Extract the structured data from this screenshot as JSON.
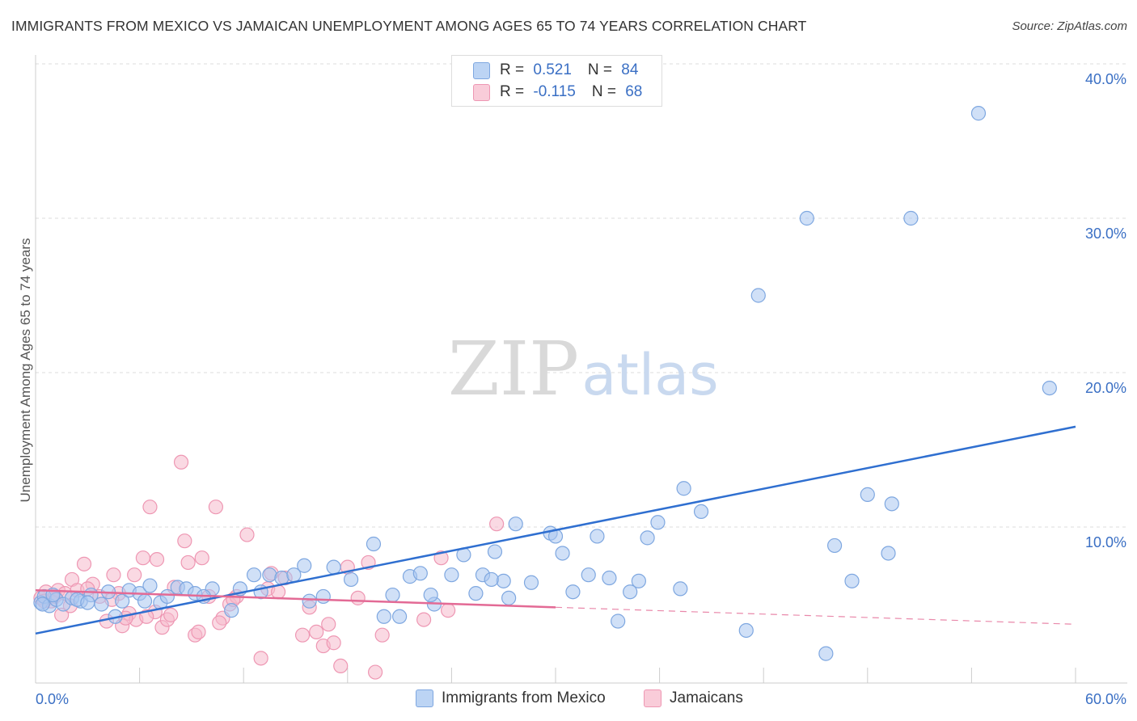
{
  "title": "IMMIGRANTS FROM MEXICO VS JAMAICAN UNEMPLOYMENT AMONG AGES 65 TO 74 YEARS CORRELATION CHART",
  "source": "Source: ZipAtlas.com",
  "watermark": {
    "zip": "ZIP",
    "atlas": "atlas"
  },
  "legend": {
    "rows": [
      {
        "r_label": "R = ",
        "r_value": "0.521",
        "n_label": "N = ",
        "n_value": "84"
      },
      {
        "r_label": "R = ",
        "r_value": "-0.115",
        "n_label": "N = ",
        "n_value": "68"
      }
    ]
  },
  "colors": {
    "blue_fill": "#a9c7f0",
    "blue_stroke": "#7ea7e0",
    "blue_line": "#2f6fd0",
    "pink_fill": "#f6b9cc",
    "pink_stroke": "#ee97b3",
    "pink_line": "#e36a95",
    "tick_text": "#3a6fc4",
    "grid": "#dddddd"
  },
  "chart_data": {
    "type": "scatter",
    "title": "IMMIGRANTS FROM MEXICO VS JAMAICAN UNEMPLOYMENT AMONG AGES 65 TO 74 YEARS CORRELATION CHART",
    "xlabel": "",
    "ylabel": "Unemployment Among Ages 65 to 74 years",
    "xlim": [
      0,
      60
    ],
    "ylim": [
      0,
      40
    ],
    "x_tick_labels": [
      "0.0%",
      "60.0%"
    ],
    "y_ticks": [
      10,
      20,
      30,
      40
    ],
    "y_tick_labels": [
      "10.0%",
      "20.0%",
      "30.0%",
      "40.0%"
    ],
    "grid": "horizontal dashed",
    "legend_position": "top-center",
    "series": [
      {
        "name": "Immigrants from Mexico",
        "color": "#a9c7f0",
        "trend": {
          "x": [
            0,
            60
          ],
          "y": [
            3.1,
            16.5
          ],
          "dashed_from": null
        },
        "points": [
          [
            0.3,
            5.1
          ],
          [
            0.5,
            5.5
          ],
          [
            0.8,
            4.9
          ],
          [
            1.2,
            5.3
          ],
          [
            1.6,
            5.0
          ],
          [
            2.1,
            5.4
          ],
          [
            2.6,
            5.2
          ],
          [
            3.2,
            5.6
          ],
          [
            3.8,
            5.0
          ],
          [
            4.2,
            5.8
          ],
          [
            5.0,
            5.2
          ],
          [
            5.4,
            5.9
          ],
          [
            6.0,
            5.7
          ],
          [
            6.6,
            6.2
          ],
          [
            7.2,
            5.1
          ],
          [
            7.6,
            5.5
          ],
          [
            8.2,
            6.1
          ],
          [
            8.7,
            6.0
          ],
          [
            9.2,
            5.7
          ],
          [
            10.2,
            6.0
          ],
          [
            11.8,
            6.0
          ],
          [
            12.6,
            6.9
          ],
          [
            13.5,
            6.9
          ],
          [
            14.2,
            6.7
          ],
          [
            14.9,
            6.9
          ],
          [
            15.5,
            7.5
          ],
          [
            16.6,
            5.5
          ],
          [
            17.2,
            7.4
          ],
          [
            19.5,
            8.9
          ],
          [
            20.1,
            4.2
          ],
          [
            20.6,
            5.6
          ],
          [
            21.6,
            6.8
          ],
          [
            22.2,
            7.0
          ],
          [
            23.0,
            5.0
          ],
          [
            24.0,
            6.9
          ],
          [
            24.7,
            8.2
          ],
          [
            25.8,
            6.9
          ],
          [
            26.5,
            8.4
          ],
          [
            27.0,
            6.5
          ],
          [
            27.3,
            5.4
          ],
          [
            27.7,
            10.2
          ],
          [
            28.6,
            6.4
          ],
          [
            29.7,
            9.6
          ],
          [
            30.0,
            9.4
          ],
          [
            30.4,
            8.3
          ],
          [
            31.0,
            5.8
          ],
          [
            31.9,
            6.9
          ],
          [
            32.4,
            9.4
          ],
          [
            33.1,
            6.7
          ],
          [
            33.6,
            3.9
          ],
          [
            34.3,
            5.8
          ],
          [
            34.8,
            6.5
          ],
          [
            35.3,
            9.3
          ],
          [
            35.9,
            10.3
          ],
          [
            37.2,
            6.0
          ],
          [
            37.4,
            12.5
          ],
          [
            38.4,
            11.0
          ],
          [
            41.0,
            3.3
          ],
          [
            41.7,
            25.0
          ],
          [
            44.5,
            30.0
          ],
          [
            45.6,
            1.8
          ],
          [
            46.1,
            8.8
          ],
          [
            47.1,
            6.5
          ],
          [
            48.0,
            12.1
          ],
          [
            49.2,
            8.3
          ],
          [
            49.4,
            11.5
          ],
          [
            50.5,
            30.0
          ],
          [
            54.4,
            36.8
          ],
          [
            58.5,
            19.0
          ],
          [
            0.4,
            5.0
          ],
          [
            1.0,
            5.6
          ],
          [
            2.4,
            5.3
          ],
          [
            3.0,
            5.1
          ],
          [
            4.6,
            4.2
          ],
          [
            6.3,
            5.2
          ],
          [
            9.7,
            5.5
          ],
          [
            11.3,
            4.6
          ],
          [
            13.0,
            5.8
          ],
          [
            15.8,
            5.2
          ],
          [
            18.2,
            6.6
          ],
          [
            21.0,
            4.2
          ],
          [
            22.8,
            5.6
          ],
          [
            25.4,
            5.7
          ],
          [
            26.3,
            6.6
          ]
        ]
      },
      {
        "name": "Jamaicans",
        "color": "#f6b9cc",
        "trend": {
          "x": [
            0,
            60
          ],
          "y": [
            5.9,
            3.7
          ],
          "dashed_from": 30
        },
        "points": [
          [
            0.3,
            5.4
          ],
          [
            0.6,
            5.8
          ],
          [
            0.9,
            5.2
          ],
          [
            1.3,
            5.9
          ],
          [
            1.7,
            5.7
          ],
          [
            2.1,
            6.6
          ],
          [
            2.4,
            5.9
          ],
          [
            2.8,
            7.6
          ],
          [
            3.3,
            6.3
          ],
          [
            3.7,
            5.5
          ],
          [
            4.1,
            3.9
          ],
          [
            4.5,
            6.9
          ],
          [
            5.0,
            3.6
          ],
          [
            5.4,
            4.4
          ],
          [
            5.8,
            4.0
          ],
          [
            6.2,
            8.0
          ],
          [
            6.6,
            11.3
          ],
          [
            6.9,
            4.5
          ],
          [
            7.3,
            3.5
          ],
          [
            7.6,
            4.0
          ],
          [
            8.0,
            6.1
          ],
          [
            8.4,
            14.2
          ],
          [
            8.8,
            7.7
          ],
          [
            9.2,
            3.0
          ],
          [
            9.6,
            8.0
          ],
          [
            10.0,
            5.5
          ],
          [
            10.4,
            11.3
          ],
          [
            10.8,
            4.1
          ],
          [
            11.2,
            5.0
          ],
          [
            11.6,
            5.5
          ],
          [
            12.2,
            9.5
          ],
          [
            13.0,
            1.5
          ],
          [
            13.6,
            7.0
          ],
          [
            14.4,
            6.7
          ],
          [
            15.4,
            3.0
          ],
          [
            16.2,
            3.2
          ],
          [
            16.6,
            2.3
          ],
          [
            17.2,
            2.5
          ],
          [
            17.6,
            1.0
          ],
          [
            18.0,
            7.4
          ],
          [
            19.2,
            7.7
          ],
          [
            19.6,
            0.6
          ],
          [
            20.0,
            3.0
          ],
          [
            22.4,
            4.0
          ],
          [
            23.4,
            8.0
          ],
          [
            23.8,
            4.6
          ],
          [
            26.6,
            10.2
          ],
          [
            1.1,
            5.5
          ],
          [
            1.5,
            4.3
          ],
          [
            4.8,
            5.7
          ],
          [
            5.2,
            4.1
          ],
          [
            5.7,
            6.9
          ],
          [
            6.4,
            4.2
          ],
          [
            7.0,
            7.9
          ],
          [
            7.8,
            4.3
          ],
          [
            8.6,
            9.1
          ],
          [
            9.4,
            3.2
          ],
          [
            10.6,
            3.8
          ],
          [
            11.4,
            5.3
          ],
          [
            13.4,
            6.0
          ],
          [
            14.0,
            5.8
          ],
          [
            15.8,
            4.8
          ],
          [
            16.9,
            3.7
          ],
          [
            18.6,
            5.4
          ],
          [
            0.5,
            5.2
          ],
          [
            2.0,
            4.9
          ],
          [
            3.0,
            6.0
          ],
          [
            4.4,
            5.3
          ]
        ]
      }
    ]
  },
  "bottom_legend": [
    {
      "label": "Immigrants from Mexico"
    },
    {
      "label": "Jamaicans"
    }
  ]
}
